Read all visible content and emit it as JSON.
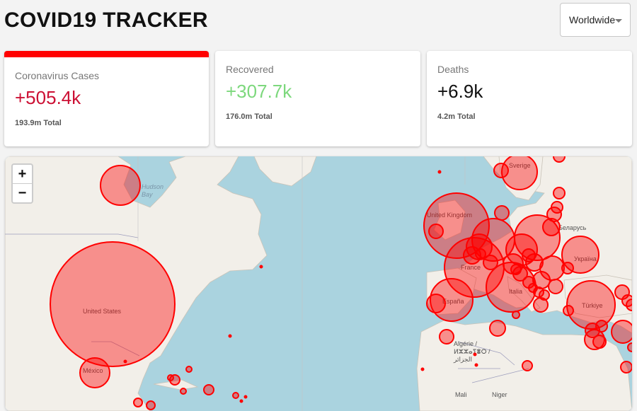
{
  "header": {
    "title": "COVID19 TRACKER"
  },
  "country_select": {
    "selected": "Worldwide"
  },
  "stats": {
    "cases": {
      "label": "Coronavirus Cases",
      "today": "+505.4k",
      "total": "193.9m Total",
      "color": "#cc1034"
    },
    "recovered": {
      "label": "Recovered",
      "today": "+307.7k",
      "total": "176.0m Total",
      "color": "#7dd87d"
    },
    "deaths": {
      "label": "Deaths",
      "today": "+6.9k",
      "total": "4.2m Total",
      "color": "#111111"
    }
  },
  "map": {
    "zoom_in": "+",
    "zoom_out": "−",
    "bubble_color": "#ff0000",
    "labels": {
      "united_states": "United States",
      "mexico": "México",
      "hudson_bay": "Hudson\nBay",
      "sverige": "Sverige",
      "united_kingdom": "United Kingdom",
      "france": "France",
      "espana": "España",
      "italia": "Italia",
      "belarus": "Беларусь",
      "ukraine": "Україна",
      "turkiye": "Türkiye",
      "algerie": "Algérie /\nⵍⵣⵣⴰⵢⴻⵔ /\nالجزائر",
      "mali": "Mali",
      "niger": "Niger"
    }
  }
}
